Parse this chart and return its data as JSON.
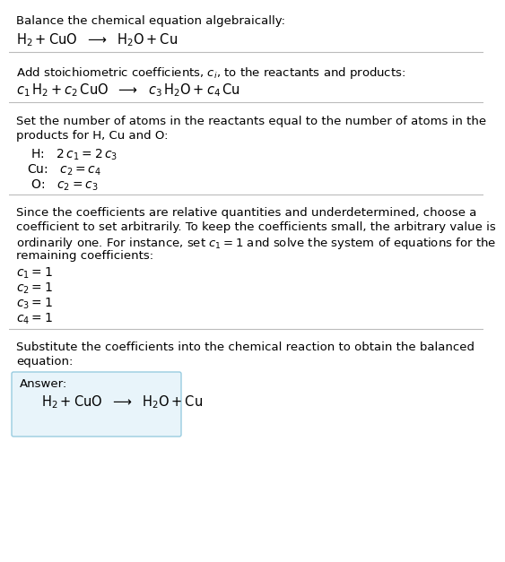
{
  "title": "Balance the chemical equation algebraically:",
  "equation1": "$\\mathrm{H_2 + CuO}$  $\\longrightarrow$  $\\mathrm{H_2O + Cu}$",
  "section2_title": "Add stoichiometric coefficients, $c_i$, to the reactants and products:",
  "equation2": "$c_1\\,\\mathrm{H_2} + c_2\\,\\mathrm{CuO}$  $\\longrightarrow$  $c_3\\,\\mathrm{H_2O} + c_4\\,\\mathrm{Cu}$",
  "section3_intro": "Set the number of atoms in the reactants equal to the number of atoms in the\nproducts for H, Cu and O:",
  "eq3_H": " H:   $2\\,c_1 = 2\\,c_3$",
  "eq3_Cu": "Cu:   $c_2 = c_4$",
  "eq3_O": " O:   $c_2 = c_3$",
  "section4_intro_lines": [
    "Since the coefficients are relative quantities and underdetermined, choose a",
    "coefficient to set arbitrarily. To keep the coefficients small, the arbitrary value is",
    "ordinarily one. For instance, set $c_1 = 1$ and solve the system of equations for the",
    "remaining coefficients:"
  ],
  "eq4": [
    "$c_1 = 1$",
    "$c_2 = 1$",
    "$c_3 = 1$",
    "$c_4 = 1$"
  ],
  "section5_intro": "Substitute the coefficients into the chemical reaction to obtain the balanced\nequation:",
  "answer_label": "Answer:",
  "answer_eq": "$\\mathrm{H_2 + CuO}$  $\\longrightarrow$  $\\mathrm{H_2O + Cu}$",
  "bg_color": "#ffffff",
  "text_color": "#000000",
  "sep_color": "#bbbbbb",
  "box_bg": "#e8f4fa",
  "box_edge": "#99cce0",
  "fs_body": 9.5,
  "fs_eq": 10.5,
  "fs_eq3": 10.0
}
